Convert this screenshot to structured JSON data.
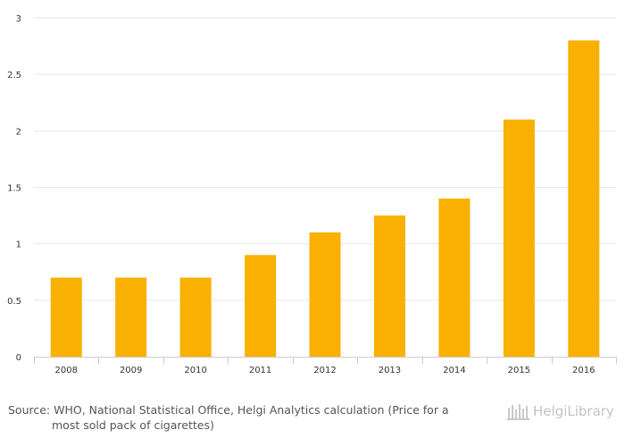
{
  "chart_data": {
    "type": "bar",
    "categories": [
      "2008",
      "2009",
      "2010",
      "2011",
      "2012",
      "2013",
      "2014",
      "2015",
      "2016"
    ],
    "values": [
      0.7,
      0.7,
      0.7,
      0.9,
      1.1,
      1.25,
      1.4,
      2.1,
      2.8
    ],
    "yticks": [
      "0",
      "0.5",
      "1",
      "1.5",
      "2",
      "2.5",
      "3"
    ],
    "ylim": [
      0,
      3
    ],
    "grid": true,
    "bar_color": "#f9b000",
    "title": "",
    "xlabel": "",
    "ylabel": ""
  },
  "source": {
    "line1": "Source: WHO, National Statistical Office, Helgi Analytics calculation (Price for a",
    "line2": "most sold pack of cigarettes)"
  },
  "logo": {
    "text": "HelgiLibrary",
    "icon": "helgi-building-icon"
  }
}
